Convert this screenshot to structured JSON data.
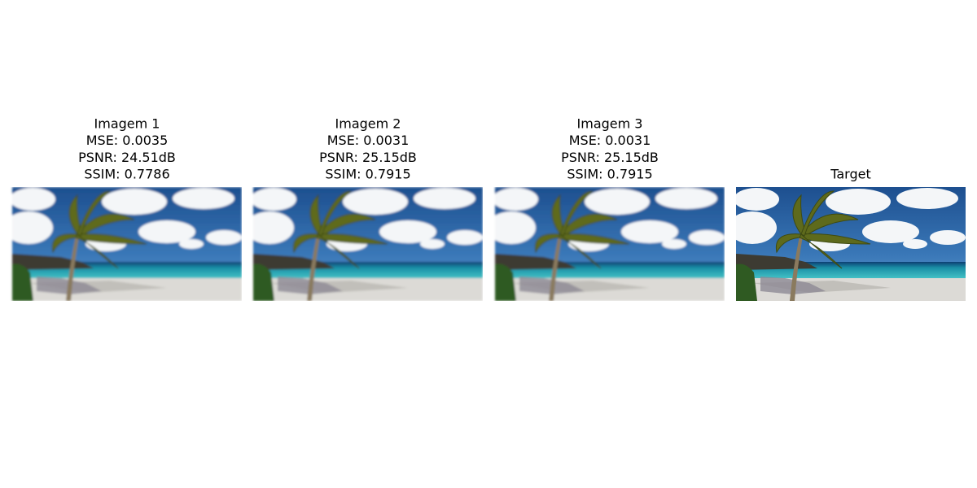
{
  "panels": [
    {
      "title": [
        "Imagem 1",
        "MSE: 0.0035",
        "PSNR: 24.51dB",
        "SSIM: 0.7786"
      ]
    },
    {
      "title": [
        "Imagem 2",
        "MSE: 0.0031",
        "PSNR: 25.15dB",
        "SSIM: 0.7915"
      ]
    },
    {
      "title": [
        "Imagem 3",
        "MSE: 0.0031",
        "PSNR: 25.15dB",
        "SSIM: 0.7915"
      ]
    },
    {
      "title": [
        "Target"
      ]
    }
  ]
}
